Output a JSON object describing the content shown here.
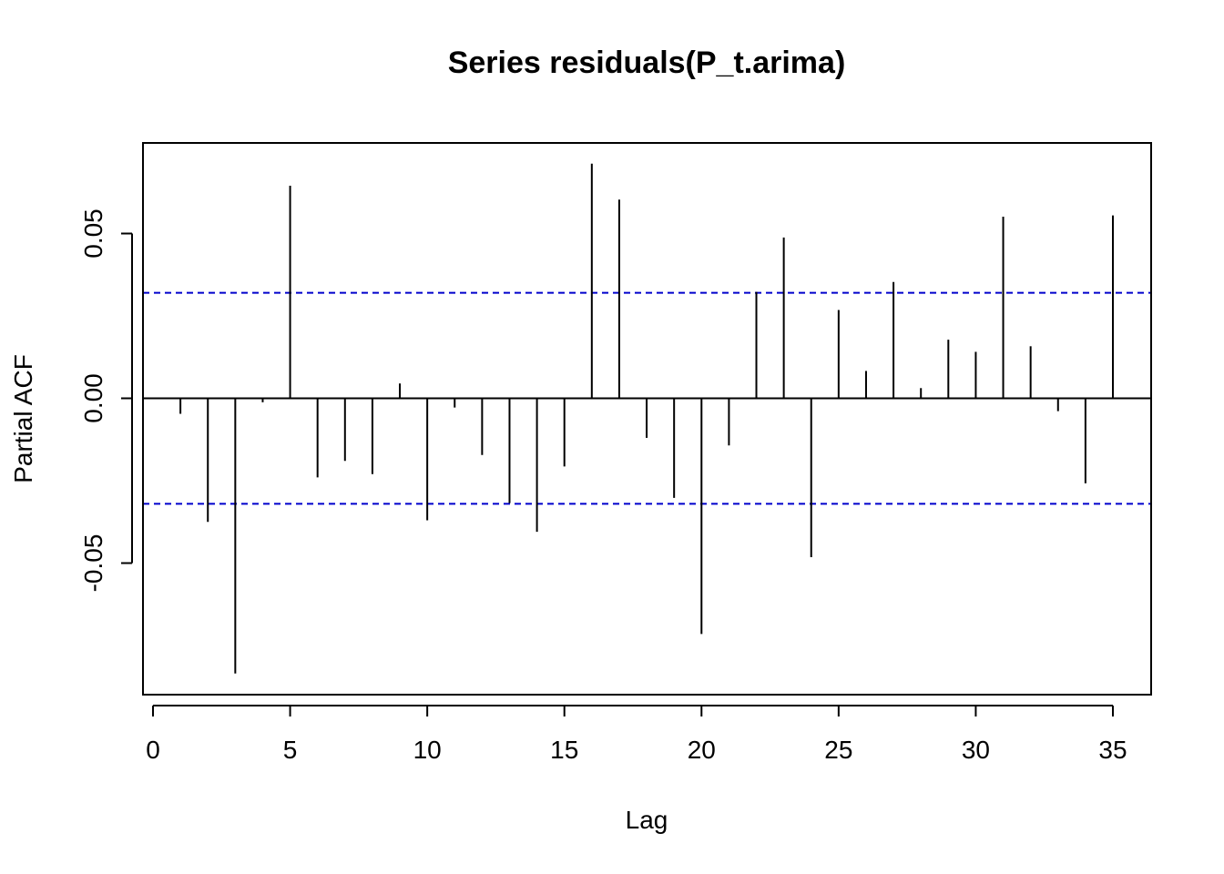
{
  "chart_data": {
    "type": "bar",
    "title": "Series  residuals(P_t.arima)",
    "xlabel": "Lag",
    "ylabel": "Partial ACF",
    "xlim": [
      0,
      35
    ],
    "ylim": [
      -0.088,
      0.078
    ],
    "x_ticks": [
      0,
      5,
      10,
      15,
      20,
      25,
      30,
      35
    ],
    "x_tick_labels": [
      "0",
      "5",
      "10",
      "15",
      "20",
      "25",
      "30",
      "35"
    ],
    "y_ticks": [
      -0.05,
      0.0,
      0.05
    ],
    "y_tick_labels": [
      "-0.05",
      "0.00",
      "0.05"
    ],
    "confidence_bound": 0.032,
    "confidence_color": "#0000cc",
    "lags": [
      1,
      2,
      3,
      4,
      5,
      6,
      7,
      8,
      9,
      10,
      11,
      12,
      13,
      14,
      15,
      16,
      17,
      18,
      19,
      20,
      21,
      22,
      23,
      24,
      25,
      26,
      27,
      28,
      29,
      30,
      31,
      32,
      33,
      34,
      35
    ],
    "values": [
      -0.0047,
      -0.0375,
      -0.0835,
      -0.0012,
      0.0645,
      -0.024,
      -0.019,
      -0.023,
      0.0045,
      -0.037,
      -0.0028,
      -0.0172,
      -0.0318,
      -0.0405,
      -0.0207,
      0.0712,
      0.0603,
      -0.012,
      -0.0302,
      -0.0715,
      -0.0143,
      0.0323,
      0.0488,
      -0.0482,
      0.0268,
      0.0083,
      0.0353,
      0.0031,
      0.0178,
      0.0141,
      0.0551,
      0.0158,
      -0.0039,
      -0.0258,
      0.0555
    ],
    "grid": false,
    "legend": "none"
  }
}
